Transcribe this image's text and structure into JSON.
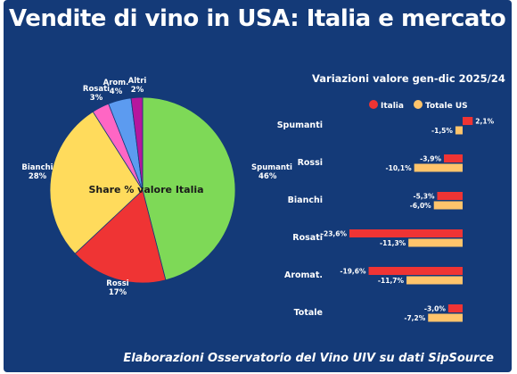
{
  "title": "Vendite di vino in USA: Italia e mercato",
  "footer": "Elaborazioni Osservatorio del Vino UIV su dati SipSource",
  "chart_data": [
    {
      "type": "pie",
      "title": "Share % valore Italia",
      "slices": [
        {
          "label": "Spumanti",
          "value": 46,
          "value_label": "46%",
          "color": "#7ed957"
        },
        {
          "label": "Rossi",
          "value": 17,
          "value_label": "17%",
          "color": "#ef3434"
        },
        {
          "label": "Bianchi",
          "value": 28,
          "value_label": "28%",
          "color": "#ffdb5c"
        },
        {
          "label": "Rosati",
          "value": 3,
          "value_label": "3%",
          "color": "#ff66c4"
        },
        {
          "label": "Arom.",
          "value": 4,
          "value_label": "4%",
          "color": "#5c9bf0"
        },
        {
          "label": "Altri",
          "value": 2,
          "value_label": "2%",
          "color": "#b5179e"
        }
      ]
    },
    {
      "type": "bar",
      "orientation": "horizontal",
      "title": "Variazioni valore gen-dic 2025/24",
      "legend_position": "top",
      "categories": [
        "Spumanti",
        "Rossi",
        "Bianchi",
        "Rosati",
        "Aromat.",
        "Totale"
      ],
      "series": [
        {
          "name": "Italia",
          "color": "#ef3434",
          "values": [
            2.1,
            -3.9,
            -5.3,
            -23.6,
            -19.6,
            -3.0
          ],
          "labels": [
            "2,1%",
            "-3,9%",
            "-5,3%",
            "-23,6%",
            "-19,6%",
            "-3,0%"
          ]
        },
        {
          "name": "Totale US",
          "color": "#ffc46b",
          "values": [
            -1.5,
            -10.1,
            -6.0,
            -11.3,
            -11.7,
            -7.2
          ],
          "labels": [
            "-1,5%",
            "-10,1%",
            "-6,0%",
            "-11,3%",
            "-11,7%",
            "-7,2%"
          ]
        }
      ]
    }
  ]
}
